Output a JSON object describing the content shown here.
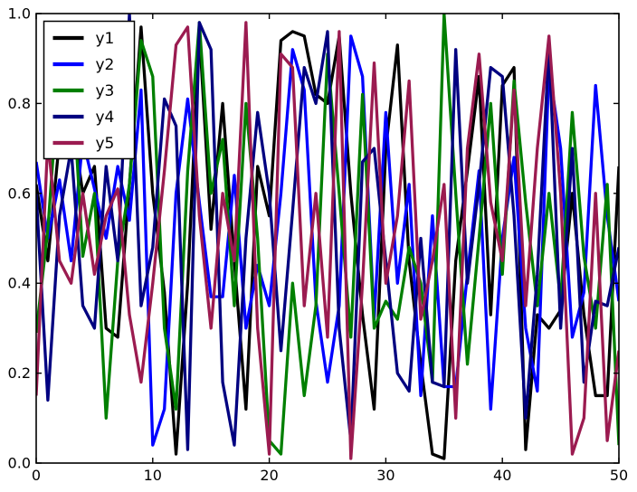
{
  "figure": {
    "background": "#ffffff",
    "frame_color": "#000000"
  },
  "chart_data": {
    "type": "line",
    "title": "",
    "xlabel": "",
    "ylabel": "",
    "grid": false,
    "xlim": [
      0,
      50
    ],
    "ylim": [
      0.0,
      1.0
    ],
    "xticks": [
      0,
      10,
      20,
      30,
      40,
      50
    ],
    "xtick_labels": [
      "0",
      "10",
      "20",
      "30",
      "40",
      "50"
    ],
    "ytick_values": [
      0.0,
      0.2,
      0.4,
      0.6,
      0.8,
      1.0
    ],
    "ytick_labels": [
      "0.0",
      "0.2",
      "0.4",
      "0.6",
      "0.8",
      "1.0"
    ],
    "legend": {
      "position": "upper left",
      "entries": [
        "y1",
        "y2",
        "y3",
        "y4",
        "y5"
      ]
    },
    "x": [
      0,
      1,
      2,
      3,
      4,
      5,
      6,
      7,
      8,
      9,
      10,
      11,
      12,
      13,
      14,
      15,
      16,
      17,
      18,
      19,
      20,
      21,
      22,
      23,
      24,
      25,
      26,
      27,
      28,
      29,
      30,
      31,
      32,
      33,
      34,
      35,
      36,
      37,
      38,
      39,
      40,
      41,
      42,
      43,
      44,
      45,
      46,
      47,
      48,
      49,
      50
    ],
    "series": [
      {
        "name": "y1",
        "color": "#000000",
        "values": [
          0.62,
          0.45,
          0.72,
          0.78,
          0.6,
          0.66,
          0.3,
          0.28,
          0.62,
          0.97,
          0.6,
          0.38,
          0.02,
          0.4,
          0.96,
          0.52,
          0.8,
          0.45,
          0.12,
          0.66,
          0.55,
          0.94,
          0.96,
          0.95,
          0.82,
          0.8,
          0.95,
          0.6,
          0.33,
          0.12,
          0.7,
          0.93,
          0.45,
          0.22,
          0.02,
          0.01,
          0.45,
          0.65,
          0.86,
          0.33,
          0.84,
          0.88,
          0.03,
          0.33,
          0.3,
          0.34,
          0.6,
          0.33,
          0.15,
          0.15,
          0.66
        ]
      },
      {
        "name": "y2",
        "color": "#0000ff",
        "values": [
          0.67,
          0.5,
          0.63,
          0.45,
          0.72,
          0.61,
          0.5,
          0.66,
          0.54,
          0.83,
          0.04,
          0.12,
          0.6,
          0.81,
          0.58,
          0.37,
          0.37,
          0.64,
          0.3,
          0.44,
          0.35,
          0.6,
          0.92,
          0.83,
          0.36,
          0.18,
          0.35,
          0.95,
          0.86,
          0.32,
          0.78,
          0.4,
          0.62,
          0.15,
          0.55,
          0.17,
          0.17,
          0.42,
          0.65,
          0.12,
          0.5,
          0.68,
          0.3,
          0.16,
          0.88,
          0.7,
          0.28,
          0.38,
          0.84,
          0.55,
          0.36
        ]
      },
      {
        "name": "y3",
        "color": "#007f00",
        "values": [
          0.29,
          0.52,
          0.88,
          0.9,
          0.46,
          0.6,
          0.1,
          0.45,
          0.62,
          0.94,
          0.86,
          0.3,
          0.12,
          0.65,
          0.98,
          0.6,
          0.72,
          0.35,
          0.8,
          0.5,
          0.05,
          0.02,
          0.4,
          0.15,
          0.35,
          0.91,
          0.6,
          0.28,
          0.82,
          0.3,
          0.36,
          0.32,
          0.48,
          0.4,
          0.18,
          1.0,
          0.6,
          0.22,
          0.5,
          0.8,
          0.42,
          0.85,
          0.58,
          0.35,
          0.6,
          0.36,
          0.78,
          0.46,
          0.3,
          0.62,
          0.04
        ]
      },
      {
        "name": "y4",
        "color": "#000080",
        "values": [
          0.6,
          0.14,
          0.55,
          0.7,
          0.35,
          0.3,
          0.66,
          0.45,
          1.0,
          0.35,
          0.48,
          0.81,
          0.75,
          0.03,
          0.98,
          0.92,
          0.18,
          0.04,
          0.5,
          0.78,
          0.6,
          0.25,
          0.56,
          0.88,
          0.8,
          0.96,
          0.3,
          0.05,
          0.67,
          0.7,
          0.45,
          0.2,
          0.16,
          0.5,
          0.18,
          0.17,
          0.92,
          0.4,
          0.62,
          0.88,
          0.86,
          0.55,
          0.1,
          0.42,
          0.93,
          0.3,
          0.7,
          0.18,
          0.36,
          0.35,
          0.48
        ]
      },
      {
        "name": "y5",
        "color": "#9b1b50",
        "values": [
          0.15,
          0.72,
          0.45,
          0.4,
          0.6,
          0.42,
          0.55,
          0.61,
          0.33,
          0.18,
          0.4,
          0.65,
          0.93,
          0.97,
          0.55,
          0.3,
          0.6,
          0.45,
          0.98,
          0.3,
          0.02,
          0.91,
          0.88,
          0.35,
          0.6,
          0.28,
          0.96,
          0.01,
          0.4,
          0.89,
          0.4,
          0.55,
          0.85,
          0.32,
          0.45,
          0.62,
          0.1,
          0.7,
          0.91,
          0.58,
          0.45,
          0.83,
          0.35,
          0.7,
          0.95,
          0.6,
          0.02,
          0.1,
          0.6,
          0.05,
          0.25
        ]
      }
    ]
  }
}
